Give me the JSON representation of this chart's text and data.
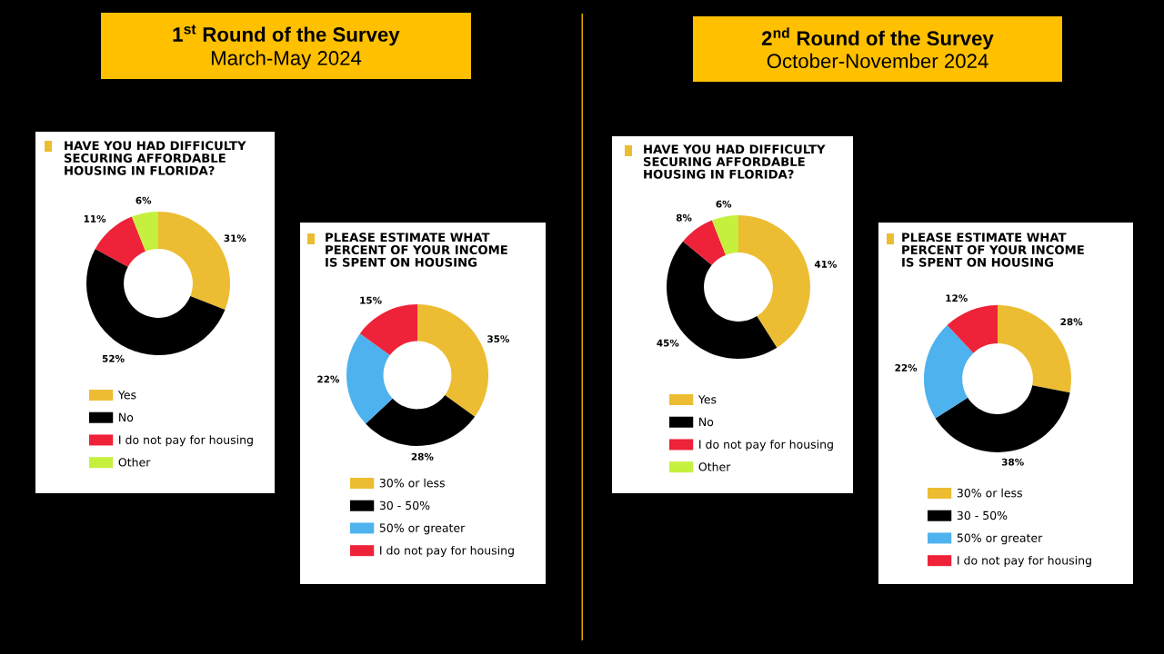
{
  "chart_data": [
    {
      "type": "other",
      "title": "1$^{st}$ Round of the Survey",
      "subtitle": "March-May 2024",
      "color": "#ffc000"
    },
    {
      "type": "donut",
      "title": "HAVE YOU HAD DIFFICULTY\nSECURING AFFORDABLE\nHOUSING IN FLORIDA?",
      "categories": [
        "Yes",
        "No",
        "I do not pay for housing",
        "Other"
      ],
      "values": [
        31,
        52,
        11,
        6
      ],
      "value_labels": [
        "31%",
        "52%",
        "11%",
        "6%"
      ],
      "colors": [
        "#ecbd32",
        "#000000",
        "#ee2238",
        "#c6f03e"
      ],
      "legend": "bottom"
    },
    {
      "type": "donut",
      "title": "PLEASE ESTIMATE WHAT\nPERCENT OF YOUR INCOME\nIS SPENT ON HOUSING",
      "categories": [
        "30% or less",
        "30 - 50%",
        "50% or greater",
        "I do not pay for housing"
      ],
      "values": [
        35,
        28,
        22,
        15
      ],
      "value_labels": [
        "35%",
        "28%",
        "22%",
        "15%"
      ],
      "colors": [
        "#ecbd32",
        "#000000",
        "#4db2ee",
        "#ee2238"
      ],
      "legend": "bottom"
    },
    {
      "type": "other",
      "title": "2$^{nd}$ Round of the Survey",
      "subtitle": "October-November 2024",
      "color": "#ffc000"
    },
    {
      "type": "donut",
      "title": "HAVE YOU HAD DIFFICULTY\nSECURING AFFORDABLE\nHOUSING IN FLORIDA?",
      "categories": [
        "Yes",
        "No",
        "I do not pay for housing",
        "Other"
      ],
      "values": [
        41,
        45,
        8,
        6
      ],
      "value_labels": [
        "41%",
        "45%",
        "8%",
        "6%"
      ],
      "colors": [
        "#ecbd32",
        "#000000",
        "#ee2238",
        "#c6f03e"
      ],
      "legend": "bottom"
    },
    {
      "type": "donut",
      "title": "PLEASE ESTIMATE WHAT\nPERCENT OF YOUR INCOME\nIS SPENT ON HOUSING",
      "categories": [
        "30% or less",
        "30 - 50%",
        "50% or greater",
        "I do not pay for housing"
      ],
      "values": [
        28,
        38,
        22,
        12
      ],
      "value_labels": [
        "28%",
        "38%",
        "22%",
        "12%"
      ],
      "colors": [
        "#ecbd32",
        "#000000",
        "#4db2ee",
        "#ee2238"
      ],
      "legend": "bottom"
    }
  ]
}
